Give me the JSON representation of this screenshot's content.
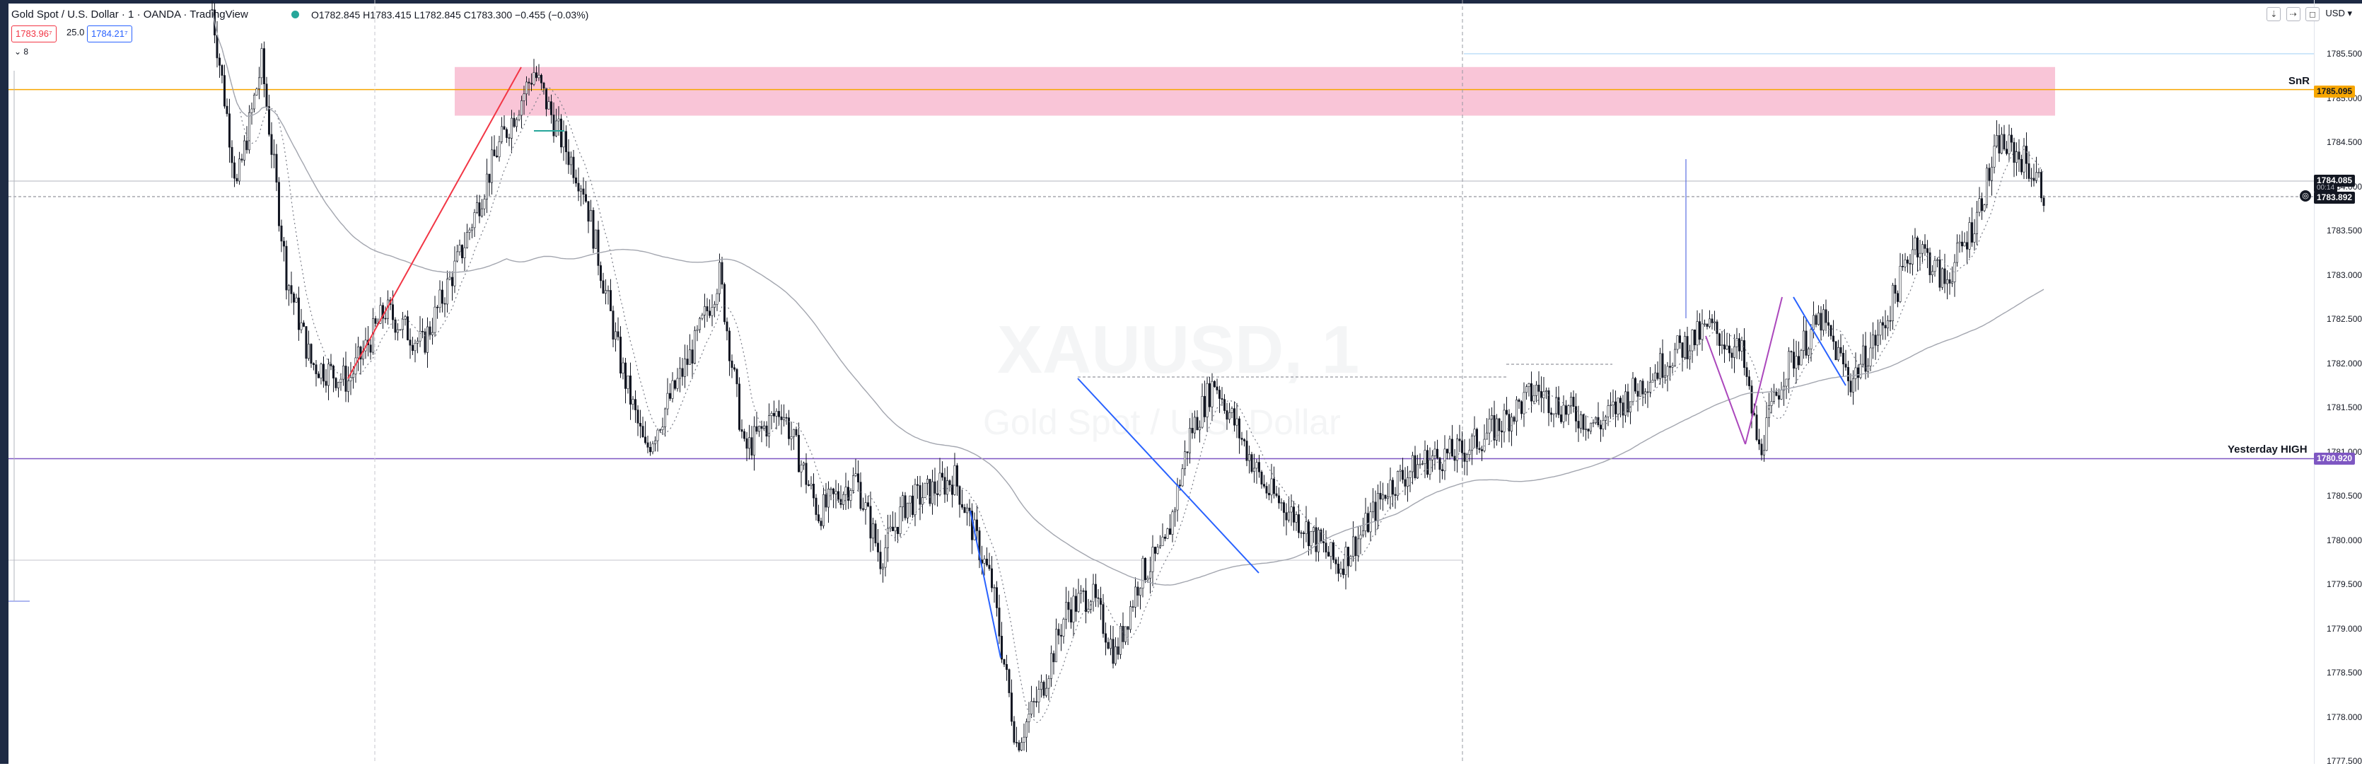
{
  "header": {
    "symbol_title": "Gold Spot / U.S. Dollar · 1 · OANDA · TradingView",
    "ohlc": "O1782.845 H1783.415 L1782.845 C1783.300 −0.455 (−0.03%)",
    "sell_price": "1783.96⁷",
    "spread": "25.0",
    "buy_price": "1784.21⁷",
    "collapse_toggle": "⌄ 8",
    "currency": "USD",
    "window_controls": [
      "⇣",
      "⇢",
      "◻"
    ]
  },
  "watermark": {
    "symbol": "XAUUSD, 1",
    "description": "Gold Spot / U.S. Dollar"
  },
  "price_axis": {
    "ticks": [
      "1785.500",
      "1785.000",
      "1784.500",
      "1784.000",
      "1783.500",
      "1783.000",
      "1782.500",
      "1782.000",
      "1781.500",
      "1781.000",
      "1780.500",
      "1780.000",
      "1779.500",
      "1779.000",
      "1778.500",
      "1778.000",
      "1777.500"
    ],
    "snr_price_tag": "1785.095",
    "current_price_tag": "1784.085",
    "current_price_sub": "00:14",
    "bid_price_tag": "1783.892",
    "yesterday_high_tag": "1780.920"
  },
  "annotations": {
    "snr_label": "SnR",
    "yesterday_high_label": "Yesterday HIGH"
  },
  "colors": {
    "up_candle": "#131722",
    "down_candle": "#131722",
    "snr_zone": "#f8bbd0",
    "snr_line": "#f7a600",
    "yesterday_high": "#7e57c2",
    "bid_tag": "#131722",
    "current_tag": "#131722"
  },
  "chart_data": {
    "type": "candlestick",
    "symbol": "XAUUSD",
    "timeframe": "1",
    "ylim": [
      1777.5,
      1786.0
    ],
    "levels": [
      {
        "name": "SnR",
        "price": 1785.095
      },
      {
        "name": "Yesterday HIGH",
        "price": 1780.92
      }
    ],
    "zone": {
      "low": 1784.8,
      "high": 1785.35
    },
    "path": [
      [
        0,
        1786.0
      ],
      [
        10,
        1784.0
      ],
      [
        20,
        1785.4
      ],
      [
        30,
        1783.0
      ],
      [
        40,
        1782.0
      ],
      [
        55,
        1781.8
      ],
      [
        70,
        1782.6
      ],
      [
        85,
        1782.2
      ],
      [
        100,
        1783.2
      ],
      [
        115,
        1784.4
      ],
      [
        130,
        1785.3
      ],
      [
        140,
        1784.6
      ],
      [
        150,
        1784.0
      ],
      [
        165,
        1782.0
      ],
      [
        175,
        1781.0
      ],
      [
        185,
        1781.6
      ],
      [
        195,
        1782.2
      ],
      [
        205,
        1783.0
      ],
      [
        215,
        1781.0
      ],
      [
        230,
        1781.5
      ],
      [
        245,
        1780.3
      ],
      [
        260,
        1780.7
      ],
      [
        270,
        1779.8
      ],
      [
        280,
        1780.4
      ],
      [
        300,
        1780.7
      ],
      [
        315,
        1779.5
      ],
      [
        325,
        1777.7
      ],
      [
        335,
        1778.3
      ],
      [
        345,
        1779.2
      ],
      [
        355,
        1779.4
      ],
      [
        365,
        1778.7
      ],
      [
        375,
        1779.6
      ],
      [
        385,
        1779.9
      ],
      [
        395,
        1781.2
      ],
      [
        405,
        1781.8
      ],
      [
        415,
        1781.2
      ],
      [
        425,
        1780.6
      ],
      [
        440,
        1780.2
      ],
      [
        455,
        1779.7
      ],
      [
        465,
        1780.1
      ],
      [
        475,
        1780.6
      ],
      [
        490,
        1780.9
      ],
      [
        505,
        1781.0
      ],
      [
        520,
        1781.3
      ],
      [
        535,
        1781.7
      ],
      [
        545,
        1781.5
      ],
      [
        560,
        1781.3
      ],
      [
        575,
        1781.7
      ],
      [
        590,
        1782.1
      ],
      [
        605,
        1782.4
      ],
      [
        618,
        1782.1
      ],
      [
        625,
        1781.0
      ],
      [
        635,
        1781.9
      ],
      [
        650,
        1782.5
      ],
      [
        662,
        1781.8
      ],
      [
        675,
        1782.4
      ],
      [
        688,
        1783.4
      ],
      [
        700,
        1782.9
      ],
      [
        712,
        1783.6
      ],
      [
        722,
        1784.5
      ],
      [
        732,
        1784.3
      ],
      [
        740,
        1783.95
      ]
    ]
  }
}
